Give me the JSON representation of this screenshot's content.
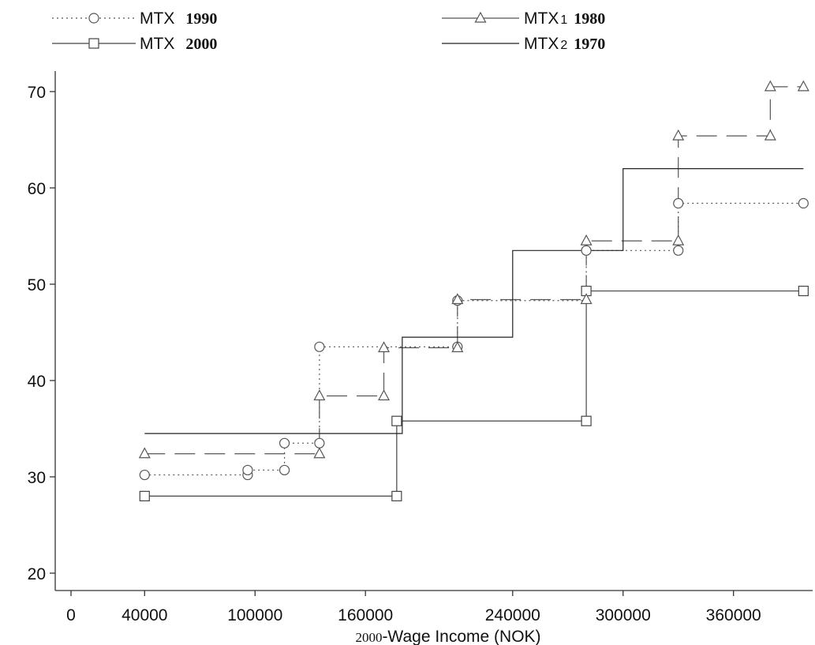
{
  "chart_data": {
    "type": "line",
    "step": "post",
    "xlabel_prefix": "2000",
    "xlabel": "-Wage Income (NOK)",
    "ylabel": "",
    "xlim": [
      -10000,
      400000
    ],
    "ylim": [
      18.5,
      72.5
    ],
    "xticks": [
      0,
      40000,
      100000,
      160000,
      240000,
      300000,
      360000
    ],
    "xtick_labels": [
      "0",
      "40000",
      "100000",
      "160000",
      "240000",
      "300000",
      "360000"
    ],
    "yticks": [
      20,
      30,
      40,
      50,
      60,
      70
    ],
    "ytick_labels": [
      "20",
      "30",
      "40",
      "50",
      "60",
      "70"
    ],
    "grid": false,
    "legend_position": "top",
    "legend": [
      {
        "prefix": "MTX",
        "sub": "",
        "year": "1990",
        "series": 0
      },
      {
        "prefix": "MTX",
        "sub": "1",
        "year": "1980",
        "series": 2
      },
      {
        "prefix": "MTX",
        "sub": "",
        "year": "2000",
        "series": 1
      },
      {
        "prefix": "MTX",
        "sub": "2",
        "year": "1970",
        "series": 3
      }
    ],
    "series": [
      {
        "key": "mtx-1990",
        "color": "#555555",
        "dash": "2,4",
        "marker": "circle",
        "steps": [
          [
            40000,
            30.2
          ],
          [
            96000,
            30.7
          ],
          [
            116000,
            33.5
          ],
          [
            135000,
            43.5
          ],
          [
            210000,
            48.3
          ],
          [
            280000,
            53.5
          ],
          [
            330000,
            58.4
          ],
          [
            398000,
            58.4
          ]
        ],
        "markers": [
          [
            40000,
            30.2
          ],
          [
            96000,
            30.2
          ],
          [
            96000,
            30.7
          ],
          [
            116000,
            30.7
          ],
          [
            116000,
            33.5
          ],
          [
            135000,
            33.5
          ],
          [
            135000,
            43.5
          ],
          [
            210000,
            43.5
          ],
          [
            210000,
            48.3
          ],
          [
            280000,
            53.5
          ],
          [
            330000,
            53.5
          ],
          [
            330000,
            58.4
          ],
          [
            398000,
            58.4
          ]
        ]
      },
      {
        "key": "mtx-2000",
        "color": "#444444",
        "dash": "",
        "marker": "square",
        "steps": [
          [
            40000,
            28.0
          ],
          [
            177000,
            35.8
          ],
          [
            280000,
            49.3
          ],
          [
            398000,
            49.3
          ]
        ],
        "markers": [
          [
            40000,
            28.0
          ],
          [
            177000,
            28.0
          ],
          [
            177000,
            35.8
          ],
          [
            280000,
            35.8
          ],
          [
            280000,
            49.3
          ],
          [
            398000,
            49.3
          ]
        ]
      },
      {
        "key": "mtx-1980",
        "color": "#555555",
        "dash": "26,12",
        "marker": "triangle",
        "steps": [
          [
            40000,
            32.4
          ],
          [
            135000,
            38.4
          ],
          [
            170000,
            43.4
          ],
          [
            210000,
            48.4
          ],
          [
            280000,
            54.5
          ],
          [
            330000,
            65.4
          ],
          [
            380000,
            70.5
          ],
          [
            398000,
            70.5
          ]
        ],
        "markers": [
          [
            40000,
            32.4
          ],
          [
            135000,
            32.4
          ],
          [
            135000,
            38.4
          ],
          [
            170000,
            38.4
          ],
          [
            170000,
            43.4
          ],
          [
            210000,
            43.4
          ],
          [
            210000,
            48.4
          ],
          [
            280000,
            48.4
          ],
          [
            280000,
            54.5
          ],
          [
            330000,
            54.5
          ],
          [
            330000,
            65.4
          ],
          [
            380000,
            65.4
          ],
          [
            380000,
            70.5
          ],
          [
            398000,
            70.5
          ]
        ]
      },
      {
        "key": "mtx-1970",
        "color": "#222222",
        "dash": "",
        "marker": "none",
        "steps": [
          [
            40000,
            34.5
          ],
          [
            180000,
            44.5
          ],
          [
            240000,
            53.5
          ],
          [
            300000,
            62.0
          ],
          [
            398000,
            62.0
          ]
        ],
        "markers": []
      }
    ]
  }
}
